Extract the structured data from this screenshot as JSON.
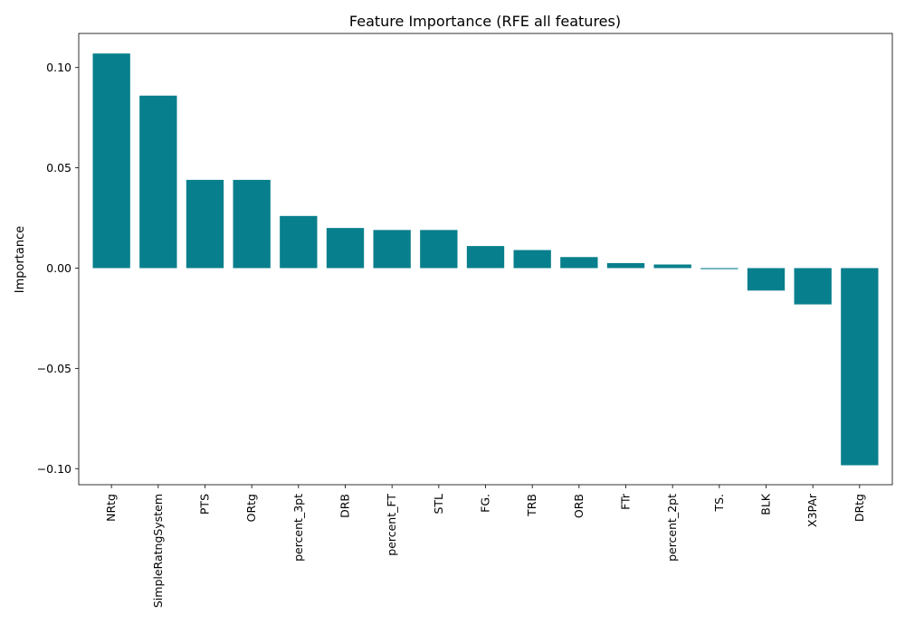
{
  "chart_data": {
    "type": "bar",
    "title": "Feature Importance (RFE all features)",
    "xlabel": "",
    "ylabel": "Importance",
    "categories": [
      "NRtg",
      "SimpleRatngSystem",
      "PTS",
      "ORtg",
      "percent_3pt",
      "DRB",
      "percent_FT",
      "STL",
      "FG.",
      "TRB",
      "ORB",
      "FTr",
      "percent_2pt",
      "TS.",
      "BLK",
      "X3PAr",
      "DRtg"
    ],
    "values": [
      0.107,
      0.086,
      0.044,
      0.044,
      0.026,
      0.02,
      0.019,
      0.019,
      0.011,
      0.009,
      0.0055,
      0.0025,
      0.0018,
      -0.0005,
      -0.0112,
      -0.0181,
      -0.0983
    ],
    "ylim": [
      -0.108,
      0.117
    ],
    "yticks": [
      -0.1,
      -0.05,
      0.0,
      0.05,
      0.1
    ],
    "ytick_labels": [
      "−0.10",
      "−0.05",
      "0.00",
      "0.05",
      "0.10"
    ],
    "bar_color": "#087f8c",
    "grid": false,
    "legend": "none"
  }
}
